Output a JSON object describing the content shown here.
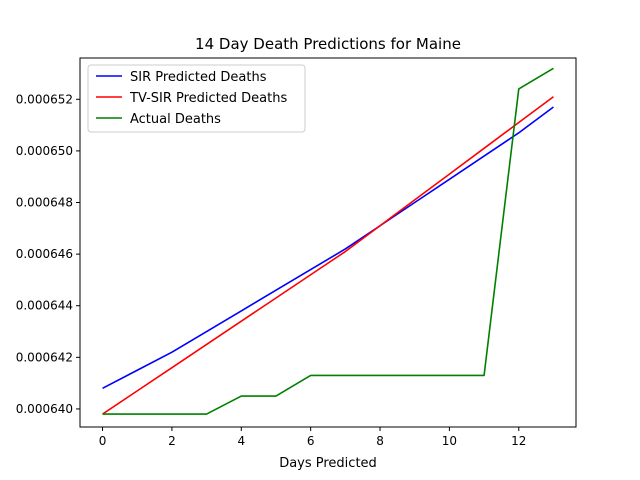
{
  "chart_data": {
    "type": "line",
    "title": "14 Day Death Predictions for Maine",
    "xlabel": "Days Predicted",
    "ylabel": "",
    "xlim": [
      -0.65,
      13.65
    ],
    "ylim": [
      0.0006393,
      0.0006536
    ],
    "xticks": [
      0,
      2,
      4,
      6,
      8,
      10,
      12
    ],
    "xtick_labels": [
      "0",
      "2",
      "4",
      "6",
      "8",
      "10",
      "12"
    ],
    "yticks": [
      0.00064,
      0.000642,
      0.000644,
      0.000646,
      0.000648,
      0.00065,
      0.000652
    ],
    "ytick_labels": [
      "0.000640",
      "0.000642",
      "0.000644",
      "0.000646",
      "0.000648",
      "0.000650",
      "0.000652"
    ],
    "grid": false,
    "legend_position": "top-left",
    "x": [
      0,
      1,
      2,
      3,
      4,
      5,
      6,
      7,
      8,
      9,
      10,
      11,
      12,
      13
    ],
    "series": [
      {
        "name": "SIR Predicted Deaths",
        "color": "#0000ff",
        "values": [
          0.0006408,
          0.0006415,
          0.0006422,
          0.000643,
          0.0006438,
          0.0006446,
          0.0006454,
          0.0006462,
          0.0006471,
          0.000648,
          0.0006489,
          0.0006498,
          0.0006507,
          0.0006517
        ]
      },
      {
        "name": "TV-SIR Predicted Deaths",
        "color": "#ff0000",
        "values": [
          0.0006398,
          0.0006407,
          0.0006416,
          0.0006425,
          0.0006434,
          0.0006443,
          0.0006452,
          0.0006461,
          0.0006471,
          0.0006481,
          0.0006491,
          0.0006501,
          0.0006511,
          0.0006521
        ]
      },
      {
        "name": "Actual Deaths",
        "color": "#008000",
        "values": [
          0.0006398,
          0.0006398,
          0.0006398,
          0.0006398,
          0.0006405,
          0.0006405,
          0.0006413,
          0.0006413,
          0.0006413,
          0.0006413,
          0.0006413,
          0.0006413,
          0.0006524,
          0.0006532
        ]
      }
    ]
  }
}
